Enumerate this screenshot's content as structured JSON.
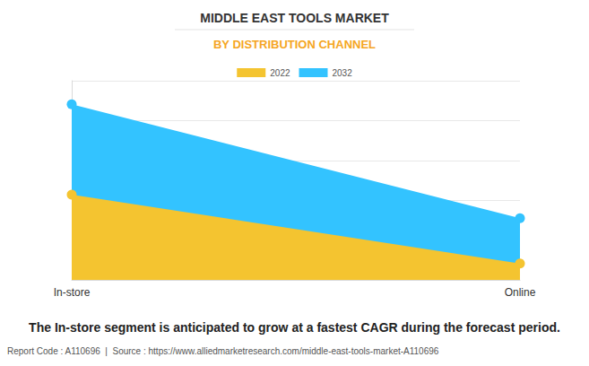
{
  "chart_data": {
    "type": "area",
    "title": "MIDDLE EAST TOOLS MARKET",
    "subtitle": "BY DISTRIBUTION CHANNEL",
    "categories": [
      "In-store",
      "Online"
    ],
    "series": [
      {
        "name": "2022",
        "color": "#F4C430",
        "values": [
          2.14,
          0.41
        ]
      },
      {
        "name": "2032",
        "color": "#33C3FF",
        "values": [
          4.41,
          1.55
        ]
      }
    ],
    "ylim": [
      0,
      5
    ],
    "yticks": [
      0,
      1,
      2,
      3,
      4,
      5
    ],
    "grid": true,
    "stacked": false,
    "tick_labels": "x",
    "legend": "top",
    "marker": "circle",
    "annotations": [
      "The In-store segment is anticipated to grow at a fastest CAGR during the forecast period.",
      "Report Code : A110696  |  Source : https://www.alliedmarketresearch.com/middle-east-tools-market-A110696"
    ]
  }
}
